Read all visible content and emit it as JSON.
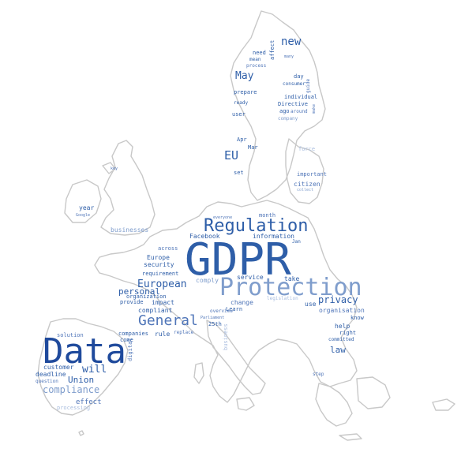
{
  "wordcloud": {
    "words": {
      "gdpr": "GDPR",
      "protection": "Protection",
      "data": "Data",
      "regulation": "Regulation",
      "general": "General",
      "european": "European",
      "eu": "EU",
      "new": "new",
      "may": "May",
      "privacy": "privacy",
      "will": "will",
      "union": "Union",
      "compliance": "compliance",
      "personal": "personal",
      "law": "law",
      "effect": "effect",
      "customer": "customer",
      "deadline": "deadline",
      "question": "question",
      "processing": "processing",
      "solution": "solution",
      "companies": "companies",
      "come": "come",
      "rule": "rule",
      "replace": "replace",
      "digital": "digital",
      "compliant": "compliant",
      "provide": "provide",
      "impact": "impact",
      "organization": "organization",
      "requirement": "requirement",
      "security": "security",
      "europe": "Europe",
      "across": "across",
      "facebook": "Facebook",
      "businesses": "businesses",
      "year": "year",
      "google": "Google",
      "key": "key",
      "everyone": "everyone",
      "month": "month",
      "information": "information",
      "jan": "Jan",
      "service": "service",
      "comply": "comply",
      "take": "take",
      "legislation": "legislation",
      "change": "change",
      "learn": "Learn",
      "overview": "overview",
      "parliament": "Parliament",
      "25th": "25th",
      "business": "business",
      "use": "use",
      "organisation": "organisation",
      "know": "know",
      "help": "help",
      "right": "right",
      "committed": "committed",
      "step": "step",
      "set": "set",
      "citizen": "citizen",
      "collect": "collect",
      "important": "important",
      "force": "force",
      "apr": "Apr",
      "mar": "Mar",
      "user": "user",
      "ready": "ready",
      "prepare": "prepare",
      "consumer": "consumer",
      "individual": "individual",
      "directive": "Directive",
      "ago": "ago",
      "around": "around",
      "company": "company",
      "make": "make",
      "guide": "guide",
      "day": "day",
      "need": "need",
      "mean": "mean",
      "process": "process",
      "affect": "affect",
      "many": "many"
    }
  }
}
